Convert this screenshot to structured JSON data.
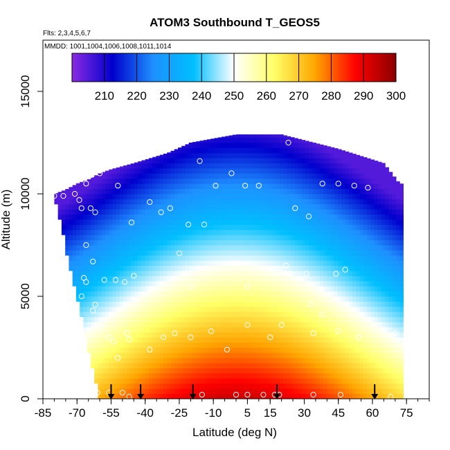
{
  "chart_data": {
    "type": "heatmap",
    "title": "ATOM3 Southbound T_GEOS5",
    "notes": [
      "Flts: 2,3,4,5,6,7",
      "MMDD: 1001,1004,1006,1008,1011,1014"
    ],
    "xlabel": "Latitude (deg N)",
    "ylabel": "Altitude (m)",
    "xlim": [
      -85,
      85
    ],
    "ylim": [
      0,
      17500
    ],
    "x_ticks": [
      -85,
      -70,
      -55,
      -40,
      -25,
      -10,
      5,
      15,
      30,
      45,
      60,
      75
    ],
    "y_ticks": [
      0,
      5000,
      10000,
      15000
    ],
    "colorbar": {
      "ticks": [
        210,
        220,
        230,
        240,
        250,
        260,
        270,
        280,
        290,
        300
      ],
      "range": [
        200,
        300
      ],
      "stops": [
        "#8a2be2",
        "#0000cd",
        "#1e90ff",
        "#00bfff",
        "#ffffff",
        "#ffff66",
        "#ffa500",
        "#ff0000",
        "#8b0000"
      ]
    },
    "field_extent": {
      "columns": [
        {
          "lat": -80,
          "top": 10000
        },
        {
          "lat": -75,
          "top": 10200
        },
        {
          "lat": -70,
          "top": 10500
        },
        {
          "lat": -65,
          "top": 10700
        },
        {
          "lat": -60,
          "top": 11000
        },
        {
          "lat": -55,
          "top": 11200
        },
        {
          "lat": -45,
          "top": 11500
        },
        {
          "lat": -30,
          "top": 12000
        },
        {
          "lat": -20,
          "top": 12500
        },
        {
          "lat": 0,
          "top": 12900
        },
        {
          "lat": 20,
          "top": 12900
        },
        {
          "lat": 45,
          "top": 12200
        },
        {
          "lat": 65,
          "top": 11500
        },
        {
          "lat": 72,
          "top": 10500
        }
      ],
      "bottom_left": [
        -80,
        10000,
        -60,
        0
      ]
    },
    "field": {
      "tropopause_temp": 210,
      "surface_temp_tropics": 293,
      "surface_temp_polar": 262,
      "lapse_rate_K_per_km": 6.5
    },
    "obs_points": [
      {
        "lat": -80,
        "alt": 9900
      },
      {
        "lat": -76,
        "alt": 9900
      },
      {
        "lat": -71,
        "alt": 10000
      },
      {
        "lat": -69,
        "alt": 9700
      },
      {
        "lat": -66,
        "alt": 10500
      },
      {
        "lat": -64,
        "alt": 10900
      },
      {
        "lat": -60,
        "alt": 11000
      },
      {
        "lat": -68,
        "alt": 9300
      },
      {
        "lat": -64,
        "alt": 9300
      },
      {
        "lat": -62,
        "alt": 9100
      },
      {
        "lat": -52,
        "alt": 10400
      },
      {
        "lat": -46,
        "alt": 8600
      },
      {
        "lat": -38,
        "alt": 9600
      },
      {
        "lat": -33,
        "alt": 9100
      },
      {
        "lat": -29,
        "alt": 9300
      },
      {
        "lat": -24,
        "alt": 12500
      },
      {
        "lat": -16,
        "alt": 11600
      },
      {
        "lat": -9,
        "alt": 10400
      },
      {
        "lat": -2,
        "alt": 11000
      },
      {
        "lat": 4,
        "alt": 10400
      },
      {
        "lat": 10,
        "alt": 10400
      },
      {
        "lat": 23,
        "alt": 12500
      },
      {
        "lat": 38,
        "alt": 10500
      },
      {
        "lat": 45,
        "alt": 10500
      },
      {
        "lat": 52,
        "alt": 10400
      },
      {
        "lat": 58,
        "alt": 10300
      },
      {
        "lat": 67,
        "alt": 11800
      },
      {
        "lat": 26,
        "alt": 9300
      },
      {
        "lat": 32,
        "alt": 8900
      },
      {
        "lat": -21,
        "alt": 8500
      },
      {
        "lat": -14,
        "alt": 8500
      },
      {
        "lat": -66,
        "alt": 7500
      },
      {
        "lat": -63,
        "alt": 6700
      },
      {
        "lat": -67,
        "alt": 5900
      },
      {
        "lat": -66,
        "alt": 5700
      },
      {
        "lat": -73,
        "alt": 4900
      },
      {
        "lat": -68,
        "alt": 5000
      },
      {
        "lat": -62,
        "alt": 4600
      },
      {
        "lat": -63,
        "alt": 4300
      },
      {
        "lat": -58,
        "alt": 5800
      },
      {
        "lat": -53,
        "alt": 5800
      },
      {
        "lat": -49,
        "alt": 5700
      },
      {
        "lat": -45,
        "alt": 6000
      },
      {
        "lat": -38,
        "alt": 5200
      },
      {
        "lat": -25,
        "alt": 7100
      },
      {
        "lat": -20,
        "alt": 5500
      },
      {
        "lat": 5,
        "alt": 5500
      },
      {
        "lat": 15,
        "alt": 6300
      },
      {
        "lat": 19,
        "alt": 6200
      },
      {
        "lat": 22,
        "alt": 6500
      },
      {
        "lat": 31,
        "alt": 6100
      },
      {
        "lat": 44,
        "alt": 6100
      },
      {
        "lat": 48,
        "alt": 6300
      },
      {
        "lat": 33,
        "alt": 4600
      },
      {
        "lat": 38,
        "alt": 4100
      },
      {
        "lat": -60,
        "alt": 3500
      },
      {
        "lat": -56,
        "alt": 3000
      },
      {
        "lat": -54,
        "alt": 2800
      },
      {
        "lat": -48,
        "alt": 3200
      },
      {
        "lat": -47,
        "alt": 2900
      },
      {
        "lat": -38,
        "alt": 2400
      },
      {
        "lat": -32,
        "alt": 3000
      },
      {
        "lat": -27,
        "alt": 3200
      },
      {
        "lat": -20,
        "alt": 3000
      },
      {
        "lat": -11,
        "alt": 3300
      },
      {
        "lat": -4,
        "alt": 2400
      },
      {
        "lat": 5,
        "alt": 3600
      },
      {
        "lat": 15,
        "alt": 3000
      },
      {
        "lat": 20,
        "alt": 3600
      },
      {
        "lat": 34,
        "alt": 3200
      },
      {
        "lat": 45,
        "alt": 3300
      },
      {
        "lat": 54,
        "alt": 3000
      },
      {
        "lat": 70,
        "alt": 3200
      },
      {
        "lat": -52,
        "alt": 2000
      },
      {
        "lat": -61,
        "alt": 300
      },
      {
        "lat": -63,
        "alt": 200
      },
      {
        "lat": -56,
        "alt": 300
      },
      {
        "lat": -50,
        "alt": 300
      },
      {
        "lat": -47,
        "alt": 100
      },
      {
        "lat": -15,
        "alt": 200
      },
      {
        "lat": 0,
        "alt": 200
      },
      {
        "lat": 5,
        "alt": 200
      },
      {
        "lat": 12,
        "alt": 200
      },
      {
        "lat": 19,
        "alt": 200
      },
      {
        "lat": 34,
        "alt": 200
      },
      {
        "lat": 46,
        "alt": 200
      },
      {
        "lat": 68,
        "alt": 100
      },
      {
        "lat": -63,
        "alt": 500
      },
      {
        "lat": 17,
        "alt": 200
      }
    ],
    "arrows": [
      -55,
      -42,
      -19,
      18,
      61
    ]
  }
}
